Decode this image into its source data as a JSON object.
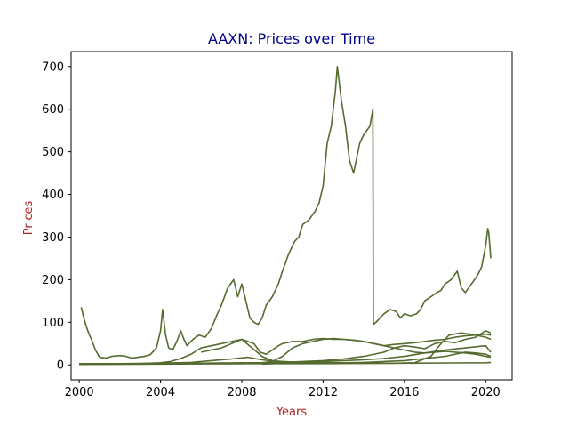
{
  "chart_data": {
    "type": "line",
    "title": "AAXN: Prices over Time",
    "xlabel": "Years",
    "ylabel": "Prices",
    "xlim": [
      1999.6,
      2021.3
    ],
    "ylim": [
      -35,
      735
    ],
    "x_ticks": [
      2000,
      2004,
      2008,
      2012,
      2016,
      2020
    ],
    "x_tick_labels": [
      "2000",
      "2004",
      "2008",
      "2012",
      "2016",
      "2020"
    ],
    "y_ticks": [
      0,
      100,
      200,
      300,
      400,
      500,
      600,
      700
    ],
    "y_tick_labels": [
      "0",
      "100",
      "200",
      "300",
      "400",
      "500",
      "600",
      "700"
    ],
    "grid": false,
    "colors": {
      "series": "#556b2f",
      "title": "#00008b",
      "axis_label": "#b22222",
      "axes": "#000000"
    },
    "series": [
      {
        "x": [
          2000.1,
          2000.2,
          2000.35,
          2000.5,
          2000.6,
          2000.8,
          2001.0,
          2001.3,
          2001.6,
          2002.0,
          2002.3,
          2002.6,
          2002.9,
          2003.2,
          2003.5,
          2003.8,
          2004.0,
          2004.1,
          2004.25,
          2004.4,
          2004.6,
          2004.8,
          2005.0,
          2005.15,
          2005.3,
          2005.6,
          2005.9,
          2006.2,
          2006.5,
          2006.8,
          2007.0,
          2007.3,
          2007.6,
          2007.8,
          2008.0,
          2008.2,
          2008.4,
          2008.6,
          2008.8,
          2009.0,
          2009.2,
          2009.5,
          2009.8,
          2010.0,
          2010.3,
          2010.6,
          2010.8,
          2011.0,
          2011.3,
          2011.6,
          2011.8,
          2012.0,
          2012.2,
          2012.4,
          2012.6,
          2012.7,
          2012.9,
          2013.1,
          2013.3,
          2013.5,
          2013.8,
          2014.0,
          2014.3,
          2014.45,
          2014.47,
          2014.6,
          2014.8,
          2015.0,
          2015.3,
          2015.6,
          2015.8,
          2016.0,
          2016.3,
          2016.6,
          2016.8,
          2017.0,
          2017.3,
          2017.6,
          2017.8,
          2018.0,
          2018.3,
          2018.6,
          2018.8,
          2019.0,
          2019.3,
          2019.6,
          2019.8,
          2020.0,
          2020.1,
          2020.15,
          2020.2,
          2020.25
        ],
        "y": [
          135,
          115,
          90,
          70,
          60,
          35,
          18,
          16,
          20,
          22,
          20,
          16,
          18,
          20,
          24,
          40,
          80,
          130,
          70,
          40,
          35,
          55,
          80,
          60,
          45,
          60,
          70,
          65,
          85,
          120,
          140,
          180,
          200,
          160,
          190,
          150,
          110,
          100,
          95,
          110,
          140,
          160,
          190,
          220,
          260,
          290,
          300,
          330,
          340,
          360,
          380,
          420,
          520,
          560,
          640,
          700,
          620,
          560,
          480,
          450,
          520,
          540,
          560,
          600,
          95,
          100,
          110,
          120,
          130,
          125,
          110,
          120,
          115,
          120,
          130,
          150,
          160,
          170,
          175,
          190,
          200,
          220,
          180,
          170,
          190,
          210,
          230,
          280,
          320,
          310,
          280,
          250
        ]
      },
      {
        "x": [
          2003.0,
          2003.5,
          2004.0,
          2004.5,
          2005.0,
          2005.5,
          2006.0,
          2006.5,
          2007.0,
          2007.5,
          2008.0,
          2008.3,
          2008.6,
          2008.9,
          2009.2,
          2009.5,
          2009.8,
          2010.0,
          2010.5,
          2011.0,
          2011.5,
          2012.0,
          2012.5,
          2013.0,
          2013.5,
          2014.0,
          2014.5,
          2015.0,
          2015.5,
          2016.0,
          2016.5,
          2017.0,
          2017.5,
          2018.0,
          2018.5,
          2019.0,
          2019.5,
          2020.0,
          2020.25
        ],
        "y": [
          3,
          4,
          5,
          8,
          15,
          25,
          40,
          45,
          50,
          55,
          60,
          55,
          50,
          30,
          25,
          35,
          45,
          50,
          55,
          55,
          60,
          62,
          60,
          60,
          58,
          55,
          50,
          45,
          48,
          50,
          52,
          55,
          58,
          60,
          65,
          68,
          70,
          72,
          70
        ]
      },
      {
        "x": [
          2000.0,
          2002.0,
          2004.0,
          2005.5,
          2006.5,
          2007.5,
          2008.3,
          2009.0,
          2009.8,
          2011.0,
          2012.5,
          2014.0,
          2015.5,
          2016.5,
          2017.3,
          2017.8,
          2018.2,
          2018.8,
          2019.5,
          2020.0,
          2020.25
        ],
        "y": [
          3,
          3,
          4,
          6,
          10,
          14,
          18,
          12,
          8,
          6,
          5,
          4,
          4,
          5,
          20,
          50,
          70,
          75,
          70,
          65,
          60
        ]
      },
      {
        "x": [
          2000.0,
          2003.0,
          2006.0,
          2008.0,
          2009.0,
          2010.0,
          2011.0,
          2012.0,
          2013.0,
          2014.0,
          2015.0,
          2015.5,
          2016.0,
          2016.5,
          2017.0,
          2017.5,
          2018.0,
          2018.5,
          2019.0,
          2019.5,
          2020.0,
          2020.25
        ],
        "y": [
          3,
          3,
          4,
          5,
          5,
          6,
          8,
          10,
          14,
          20,
          30,
          40,
          45,
          42,
          38,
          50,
          55,
          52,
          60,
          65,
          80,
          75
        ]
      },
      {
        "x": [
          2007.0,
          2008.0,
          2009.0,
          2009.5,
          2010.0,
          2010.5,
          2011.0,
          2011.5,
          2012.0,
          2012.5,
          2013.0,
          2013.5,
          2014.0,
          2014.5,
          2015.0,
          2015.5,
          2016.0,
          2016.5,
          2017.0,
          2017.5,
          2018.0,
          2018.5,
          2019.0,
          2019.5,
          2020.0,
          2020.25
        ],
        "y": [
          3,
          3,
          5,
          8,
          20,
          40,
          50,
          55,
          60,
          62,
          60,
          58,
          55,
          50,
          45,
          40,
          35,
          30,
          28,
          30,
          32,
          30,
          28,
          25,
          20,
          18
        ]
      },
      {
        "x": [
          2006.0,
          2007.0,
          2007.5,
          2008.0,
          2008.5,
          2009.0,
          2009.5,
          2010.0,
          2011.0,
          2012.0,
          2013.0,
          2014.0,
          2015.0,
          2016.0,
          2017.0,
          2018.0,
          2018.5,
          2019.0,
          2019.5,
          2020.0,
          2020.25
        ],
        "y": [
          30,
          40,
          50,
          60,
          40,
          20,
          10,
          8,
          6,
          5,
          5,
          6,
          8,
          10,
          15,
          20,
          25,
          30,
          28,
          25,
          20
        ]
      },
      {
        "x": [
          2009.0,
          2010.0,
          2011.0,
          2012.0,
          2013.0,
          2014.0,
          2015.0,
          2016.0,
          2017.0,
          2018.0,
          2019.0,
          2020.0,
          2020.25
        ],
        "y": [
          2,
          4,
          6,
          8,
          10,
          12,
          15,
          20,
          28,
          35,
          40,
          45,
          30
        ]
      },
      {
        "x": [
          2000.0,
          2004.0,
          2008.0,
          2012.0,
          2016.0,
          2020.0,
          2020.25
        ],
        "y": [
          1,
          2,
          3,
          3,
          4,
          5,
          6
        ]
      }
    ]
  }
}
